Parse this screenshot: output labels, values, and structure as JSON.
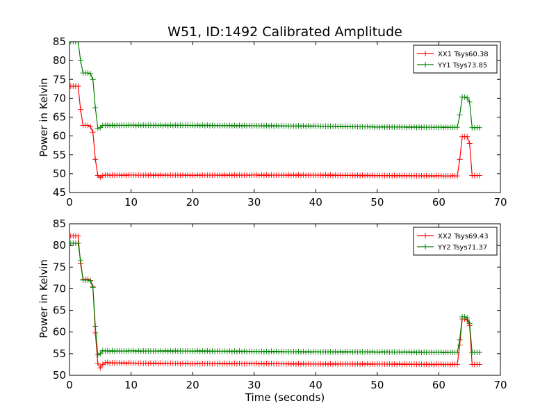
{
  "chart_data": [
    {
      "type": "line",
      "title": "W51, ID:1492 Calibrated Amplitude",
      "xlabel": "",
      "ylabel": "Power in Kelvin",
      "xlim": [
        0,
        70
      ],
      "ylim": [
        45,
        85
      ],
      "xticks": [
        "0",
        "10",
        "20",
        "30",
        "40",
        "50",
        "60",
        "70"
      ],
      "yticks": [
        "45",
        "50",
        "55",
        "60",
        "65",
        "70",
        "75",
        "80",
        "85"
      ],
      "grid": false,
      "legend_position": "top-right",
      "marker": "+",
      "series": [
        {
          "name": "XX1 Tsys60.38",
          "color": "#ff0000",
          "x": [
            0.2,
            0.6,
            1.0,
            1.4,
            1.8,
            2.2,
            2.6,
            3.0,
            3.4,
            3.8,
            4.2,
            4.6,
            5.0,
            5.4,
            5.8,
            10,
            20,
            30,
            40,
            50,
            60,
            62.6,
            63.0,
            63.4,
            63.8,
            64.2,
            64.6,
            65.0,
            65.4,
            65.8,
            66.2,
            66.6
          ],
          "y": [
            73.2,
            73.2,
            73.2,
            73.2,
            67.0,
            62.8,
            62.8,
            62.8,
            62.5,
            61.0,
            53.8,
            49.5,
            49.0,
            49.5,
            49.6,
            49.6,
            49.6,
            49.6,
            49.6,
            49.5,
            49.4,
            49.4,
            49.4,
            53.8,
            59.8,
            59.8,
            59.8,
            58.0,
            49.5,
            49.5,
            49.5,
            49.5
          ]
        },
        {
          "name": "YY1 Tsys73.85",
          "color": "#008000",
          "x": [
            0.2,
            0.6,
            1.0,
            1.4,
            1.8,
            2.2,
            2.6,
            3.0,
            3.4,
            3.8,
            4.2,
            4.6,
            5.0,
            5.4,
            5.8,
            10,
            20,
            30,
            40,
            50,
            60,
            62.6,
            63.0,
            63.4,
            63.8,
            64.2,
            64.6,
            65.0,
            65.4,
            65.8,
            66.2,
            66.6
          ],
          "y": [
            85.0,
            85.0,
            85.0,
            85.0,
            80.0,
            76.7,
            76.7,
            76.7,
            76.5,
            75.0,
            67.5,
            62.0,
            62.2,
            62.8,
            62.8,
            62.8,
            62.8,
            62.7,
            62.6,
            62.4,
            62.3,
            62.3,
            62.3,
            65.6,
            70.3,
            70.3,
            70.1,
            69.0,
            62.2,
            62.2,
            62.2,
            62.2
          ]
        }
      ]
    },
    {
      "type": "line",
      "title": "",
      "xlabel": "Time (seconds)",
      "ylabel": "Power in Kelvin",
      "xlim": [
        0,
        70
      ],
      "ylim": [
        50,
        85
      ],
      "xticks": [
        "0",
        "10",
        "20",
        "30",
        "40",
        "50",
        "60",
        "70"
      ],
      "yticks": [
        "50",
        "55",
        "60",
        "65",
        "70",
        "75",
        "80",
        "85"
      ],
      "grid": false,
      "legend_position": "top-right",
      "marker": "+",
      "series": [
        {
          "name": "XX2 Tsys69.43",
          "color": "#ff0000",
          "x": [
            0.2,
            0.6,
            1.0,
            1.4,
            1.8,
            2.2,
            2.6,
            3.0,
            3.4,
            3.8,
            4.2,
            4.6,
            5.0,
            5.4,
            5.8,
            10,
            20,
            30,
            40,
            50,
            60,
            62.6,
            63.0,
            63.4,
            63.8,
            64.2,
            64.6,
            65.0,
            65.4,
            65.8,
            66.2,
            66.6
          ],
          "y": [
            82.2,
            82.2,
            82.2,
            82.2,
            75.8,
            72.2,
            72.2,
            72.2,
            71.9,
            70.5,
            59.8,
            52.8,
            51.7,
            52.5,
            52.9,
            52.8,
            52.7,
            52.7,
            52.6,
            52.6,
            52.5,
            52.5,
            52.5,
            57.0,
            63.0,
            63.0,
            62.8,
            61.5,
            52.5,
            52.5,
            52.5,
            52.5
          ]
        },
        {
          "name": "YY2 Tsys71.37",
          "color": "#008000",
          "x": [
            0.2,
            0.6,
            1.0,
            1.4,
            1.8,
            2.2,
            2.6,
            3.0,
            3.4,
            3.8,
            4.2,
            4.6,
            5.0,
            5.4,
            5.8,
            10,
            20,
            30,
            40,
            50,
            60,
            62.6,
            63.0,
            63.4,
            63.8,
            64.2,
            64.6,
            65.0,
            65.4,
            65.8,
            66.2,
            66.6
          ],
          "y": [
            80.5,
            80.5,
            80.5,
            80.5,
            76.5,
            72.0,
            72.0,
            72.0,
            71.8,
            70.3,
            61.3,
            54.7,
            55.0,
            55.7,
            55.6,
            55.6,
            55.6,
            55.5,
            55.4,
            55.4,
            55.3,
            55.3,
            55.3,
            58.2,
            63.5,
            63.5,
            63.3,
            62.0,
            55.3,
            55.3,
            55.3,
            55.3
          ]
        }
      ]
    }
  ]
}
